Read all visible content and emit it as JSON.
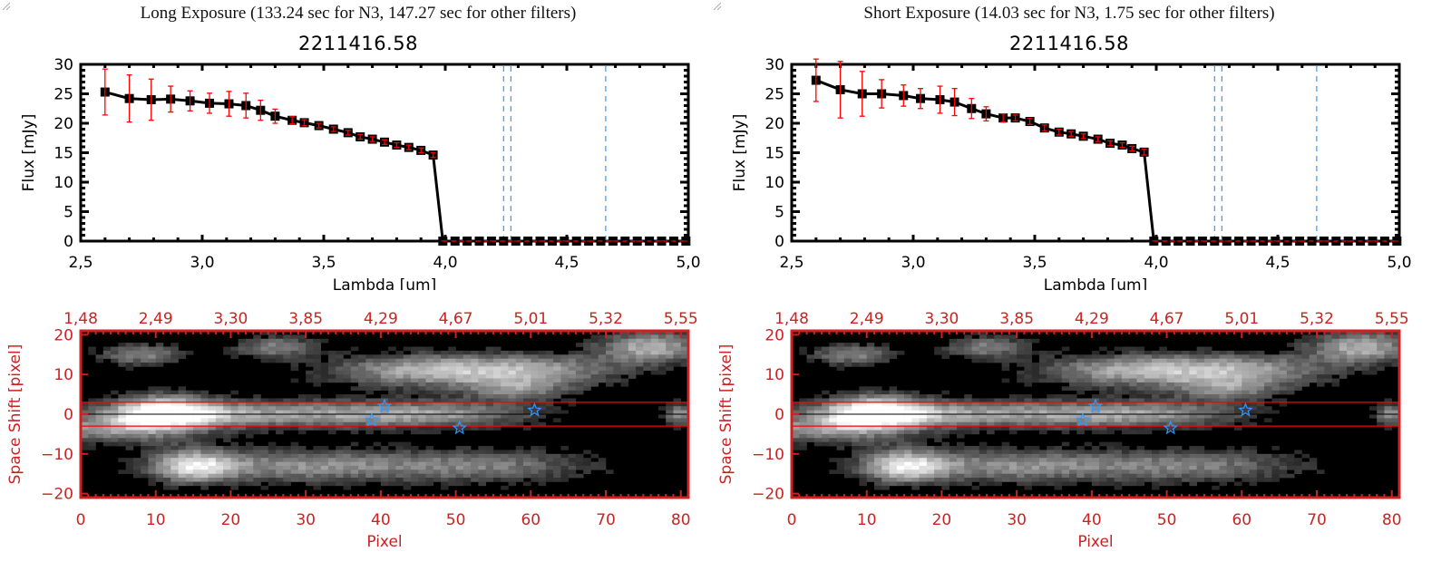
{
  "panels": [
    {
      "title": "Long Exposure (133.24 sec for N3, 147.27 sec for other filters)",
      "object_id": "2211416.58"
    },
    {
      "title": "Short Exposure (14.03 sec for N3, 1.75 sec for other filters)",
      "object_id": "2211416.58"
    }
  ],
  "chart_data": [
    {
      "type": "line",
      "title": "2211416.58",
      "xlabel": "Lambda [um]",
      "ylabel": "Flux [mJy]",
      "xlim": [
        2.5,
        5.0
      ],
      "ylim": [
        0,
        30
      ],
      "xticks": [
        "2.5",
        "3.0",
        "3.5",
        "4.0",
        "4.5",
        "5.0"
      ],
      "yticks": [
        "0",
        "5",
        "10",
        "15",
        "20",
        "25",
        "30"
      ],
      "series": [
        {
          "name": "flux",
          "x": [
            2.6,
            2.7,
            2.79,
            2.87,
            2.95,
            3.03,
            3.11,
            3.18,
            3.24,
            3.3,
            3.37,
            3.42,
            3.48,
            3.54,
            3.6,
            3.65,
            3.7,
            3.75,
            3.8,
            3.85,
            3.9,
            3.95,
            3.99,
            4.04,
            4.09,
            4.14,
            4.19,
            4.24,
            4.29,
            4.34,
            4.39,
            4.44,
            4.49,
            4.54,
            4.59,
            4.64,
            4.69,
            4.74,
            4.79,
            4.84,
            4.89,
            4.94,
            4.99
          ],
          "y": [
            25.3,
            24.2,
            24.0,
            24.1,
            23.8,
            23.4,
            23.3,
            23.0,
            22.2,
            21.2,
            20.5,
            20.1,
            19.6,
            19.0,
            18.4,
            17.7,
            17.3,
            16.8,
            16.3,
            15.9,
            15.4,
            14.6,
            0,
            0,
            0,
            0,
            0,
            0,
            0,
            0,
            0,
            0,
            0,
            0,
            0,
            0,
            0,
            0,
            0,
            0,
            0,
            0,
            0
          ],
          "yerr": [
            3.9,
            4.0,
            3.5,
            2.2,
            1.7,
            1.7,
            2.1,
            2.1,
            1.7,
            1.2,
            0.6,
            0.5,
            0.4,
            0.4,
            0.4,
            0.4,
            0.4,
            0.4,
            0.4,
            0.4,
            0.4,
            0.4,
            0,
            0,
            0,
            0,
            0,
            0,
            0,
            0,
            0,
            0,
            0,
            0,
            0,
            0,
            0,
            0,
            0,
            0,
            0,
            0,
            0
          ]
        }
      ],
      "vertical_lines_um": [
        4.24,
        4.27,
        4.66
      ],
      "zero_line": 0,
      "colors": {
        "line": "#000000",
        "errorbar": "#ff0000",
        "vline": "#3399ff",
        "zeroline": "#ff0000"
      }
    },
    {
      "type": "heatmap",
      "xlabel": "Pixel",
      "ylabel": "Space Shift [pixel]",
      "xlim": [
        0,
        81
      ],
      "ylim": [
        -21,
        21
      ],
      "xticks": [
        "0",
        "10",
        "20",
        "30",
        "40",
        "50",
        "60",
        "70",
        "80"
      ],
      "yticks": [
        "-20",
        "-10",
        "0",
        "10",
        "20"
      ],
      "top_xticks": [
        "1.48",
        "2.49",
        "3.30",
        "3.85",
        "4.29",
        "4.67",
        "5.01",
        "5.32",
        "5.55"
      ],
      "extraction_band": [
        -3,
        3
      ],
      "center_line": 0,
      "star_markers": [
        [
          40.5,
          2.0
        ],
        [
          38.8,
          -1.5
        ],
        [
          50.5,
          -3.5
        ],
        [
          60.5,
          1.0
        ]
      ],
      "colors": {
        "axis": "#cc2222",
        "band": "#ff0000",
        "star": "#3399ff"
      }
    },
    {
      "type": "line",
      "title": "2211416.58",
      "xlabel": "Lambda [um]",
      "ylabel": "Flux [mJy]",
      "xlim": [
        2.5,
        5.0
      ],
      "ylim": [
        0,
        30
      ],
      "xticks": [
        "2.5",
        "3.0",
        "3.5",
        "4.0",
        "4.5",
        "5.0"
      ],
      "yticks": [
        "0",
        "5",
        "10",
        "15",
        "20",
        "25",
        "30"
      ],
      "series": [
        {
          "name": "flux",
          "x": [
            2.6,
            2.7,
            2.79,
            2.87,
            2.96,
            3.03,
            3.11,
            3.17,
            3.24,
            3.3,
            3.37,
            3.42,
            3.48,
            3.54,
            3.6,
            3.65,
            3.7,
            3.76,
            3.81,
            3.86,
            3.9,
            3.95,
            3.99,
            4.04,
            4.09,
            4.14,
            4.19,
            4.24,
            4.29,
            4.34,
            4.39,
            4.44,
            4.49,
            4.54,
            4.59,
            4.64,
            4.69,
            4.74,
            4.79,
            4.84,
            4.89,
            4.94,
            4.99
          ],
          "y": [
            27.3,
            25.7,
            25.0,
            25.0,
            24.7,
            24.2,
            24.0,
            23.6,
            22.5,
            21.6,
            20.9,
            20.9,
            20.3,
            19.2,
            18.5,
            18.2,
            17.8,
            17.3,
            16.6,
            16.3,
            15.7,
            15.1,
            0,
            0,
            0,
            0,
            0,
            0,
            0,
            0,
            0,
            0,
            0,
            0,
            0,
            0,
            0,
            0,
            0,
            0,
            0,
            0,
            0
          ],
          "yerr": [
            3.6,
            4.8,
            3.8,
            2.4,
            1.8,
            1.7,
            2.3,
            2.3,
            1.7,
            1.2,
            0.7,
            0.5,
            0.5,
            0.5,
            0.5,
            0.4,
            0.4,
            0.4,
            0.4,
            0.4,
            0.4,
            0.5,
            0,
            0,
            0,
            0,
            0,
            0,
            0,
            0,
            0,
            0,
            0,
            0,
            0,
            0,
            0,
            0,
            0,
            0,
            0,
            0,
            0
          ]
        }
      ],
      "vertical_lines_um": [
        4.24,
        4.27,
        4.66
      ],
      "zero_line": 0,
      "colors": {
        "line": "#000000",
        "errorbar": "#ff0000",
        "vline": "#3399ff",
        "zeroline": "#ff0000"
      }
    },
    {
      "type": "heatmap",
      "xlabel": "Pixel",
      "ylabel": "Space Shift [pixel]",
      "xlim": [
        0,
        81
      ],
      "ylim": [
        -21,
        21
      ],
      "xticks": [
        "0",
        "10",
        "20",
        "30",
        "40",
        "50",
        "60",
        "70",
        "80"
      ],
      "yticks": [
        "-20",
        "-10",
        "0",
        "10",
        "20"
      ],
      "top_xticks": [
        "1.48",
        "2.49",
        "3.30",
        "3.85",
        "4.29",
        "4.67",
        "5.01",
        "5.32",
        "5.55"
      ],
      "extraction_band": [
        -3,
        3
      ],
      "center_line": 0,
      "star_markers": [
        [
          40.5,
          2.0
        ],
        [
          38.8,
          -1.5
        ],
        [
          50.5,
          -3.5
        ],
        [
          60.5,
          1.0
        ]
      ],
      "colors": {
        "axis": "#cc2222",
        "band": "#ff0000",
        "star": "#3399ff"
      }
    }
  ]
}
